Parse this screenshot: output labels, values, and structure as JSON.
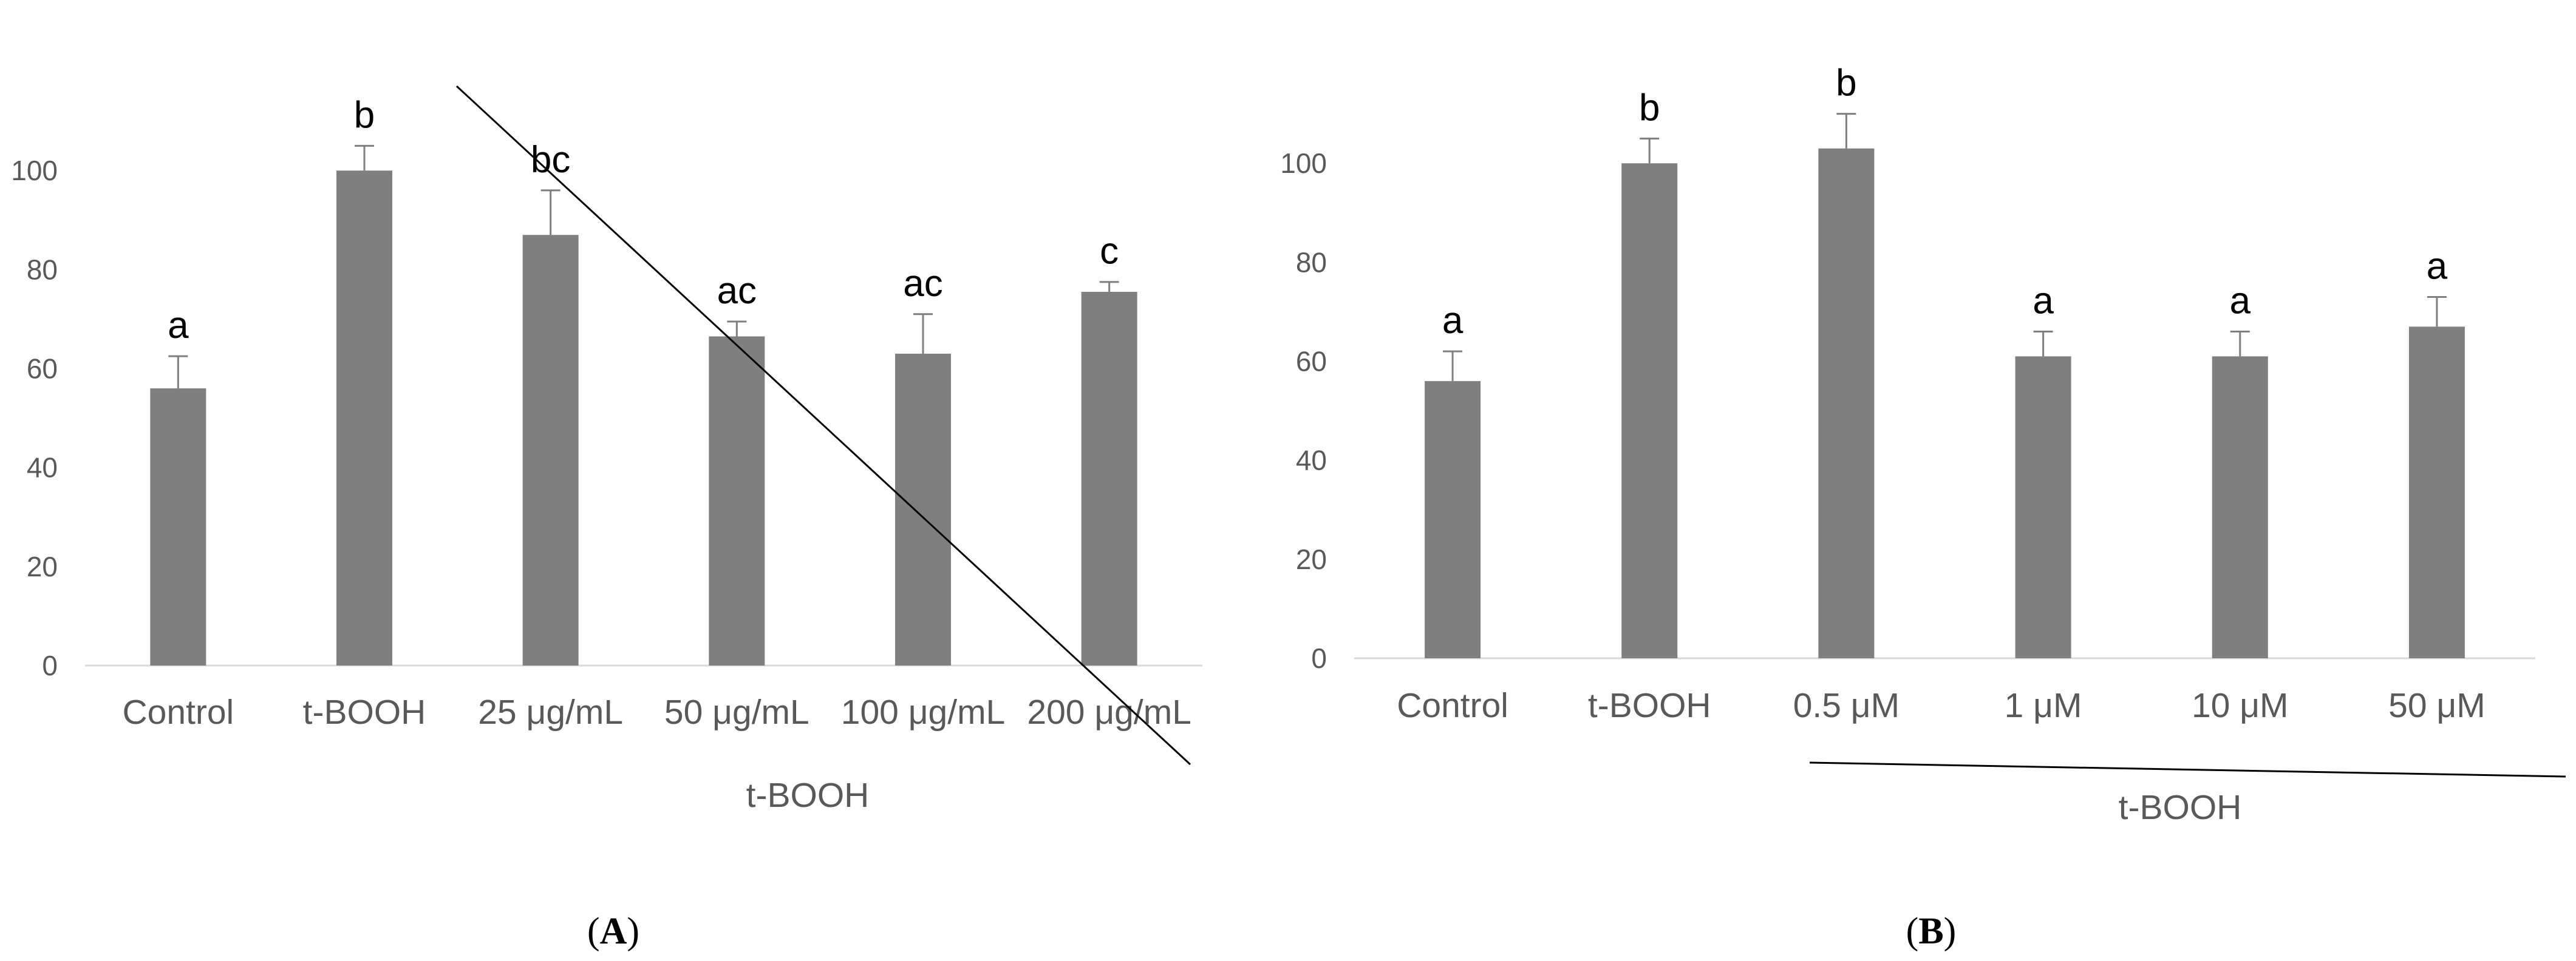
{
  "chart_data": [
    {
      "type": "bar",
      "panel_label": "A",
      "categories": [
        "Control",
        "t-BOOH",
        "25 μg/mL",
        "50 μg/mL",
        "100 μg/mL",
        "200 μg/mL"
      ],
      "values": [
        56,
        100,
        87,
        66.5,
        63,
        75.5
      ],
      "errors": [
        6.5,
        5,
        9,
        3,
        8,
        2
      ],
      "significance": [
        "a",
        "b",
        "bc",
        "ac",
        "ac",
        "c"
      ],
      "yticks": [
        0,
        20,
        40,
        60,
        80,
        100
      ],
      "ylim": [
        0,
        120
      ],
      "group_label": "t-BOOH",
      "group_span": [
        2,
        5
      ],
      "color": "#7f7f7f",
      "title": "",
      "xlabel": "",
      "ylabel": ""
    },
    {
      "type": "bar",
      "panel_label": "B",
      "categories": [
        "Control",
        "t-BOOH",
        "0.5 μM",
        "1 μM",
        "10 μM",
        "50 μM"
      ],
      "values": [
        56,
        100,
        103,
        61,
        61,
        67
      ],
      "errors": [
        6,
        5,
        7,
        5,
        5,
        6
      ],
      "significance": [
        "a",
        "b",
        "b",
        "a",
        "a",
        "a"
      ],
      "yticks": [
        0,
        20,
        40,
        60,
        80,
        100
      ],
      "ylim": [
        0,
        120
      ],
      "group_label": "t-BOOH",
      "group_span": [
        2,
        5
      ],
      "color": "#7f7f7f",
      "title": "",
      "xlabel": "",
      "ylabel": ""
    }
  ]
}
